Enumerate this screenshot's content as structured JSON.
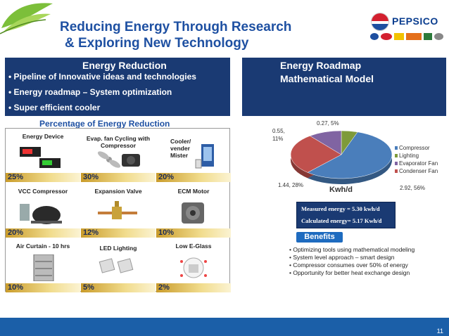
{
  "header": {
    "title_line1": "Reducing Energy Through Research",
    "title_line2": "& Exploring New Technology",
    "logo_text": "PEPSICO"
  },
  "left_panel": {
    "heading": "Energy Reduction",
    "bullets": [
      "Pipeline of Innovative ideas and technologies",
      "Energy roadmap – System optimization",
      "Super efficient cooler"
    ]
  },
  "right_panel": {
    "heading_line1": "Energy Roadmap",
    "heading_line2": "Mathematical Model"
  },
  "grid": {
    "title": "Percentage of Energy Reduction",
    "cells": [
      {
        "label": "Energy Device",
        "pct": "25%"
      },
      {
        "label": "Evap. fan Cycling with Compressor",
        "pct": "30%"
      },
      {
        "label": "Cooler/ vender Mister",
        "pct": "20%"
      },
      {
        "label": "VCC Compressor",
        "pct": "20%"
      },
      {
        "label": "Expansion Valve",
        "pct": "12%"
      },
      {
        "label": "ECM Motor",
        "pct": "10%"
      },
      {
        "label": "Air Curtain - 10 hrs",
        "pct": "10%"
      },
      {
        "label": "LED Lighting",
        "pct": "5%"
      },
      {
        "label": "Low E-Glass",
        "pct": "2%"
      }
    ]
  },
  "chart_data": {
    "type": "pie",
    "title": "Kwh/d",
    "slices": [
      {
        "name": "Compressor",
        "value": 2.92,
        "percent": 56,
        "label": "2.92, 56%",
        "color": "#4a7ebb"
      },
      {
        "name": "Lighting",
        "value": 0.27,
        "percent": 5,
        "label": "0.27, 5%",
        "color": "#7e9a3a"
      },
      {
        "name": "Evaporator Fan",
        "value": 0.55,
        "percent": 11,
        "label": "0.55, 11%",
        "color": "#8064a2"
      },
      {
        "name": "Condenser Fan",
        "value": 1.44,
        "percent": 28,
        "label": "1.44, 28%",
        "color": "#c0504d"
      }
    ],
    "legend": [
      "Compressor",
      "Lighting",
      "Evaporator Fan",
      "Condenser Fan"
    ],
    "legend_position": "right"
  },
  "measure": {
    "measured": "Measured energy = 5.30 kwh/d",
    "calculated": "Calculated energy= 5.17 Kwh/d"
  },
  "benefits": {
    "label": "Benefits",
    "items": [
      "Optimizing tools using mathematical modeling",
      "System level approach – smart design",
      "Compressor consumes over 50% of energy",
      "Opportunity for better heat exchange design"
    ]
  },
  "footer": {
    "page_number": "11"
  },
  "colors": {
    "title_blue": "#1e50a2",
    "panel_navy": "#1a3a73",
    "footer_blue": "#1b5fa8",
    "gold": "#d4a93a"
  }
}
